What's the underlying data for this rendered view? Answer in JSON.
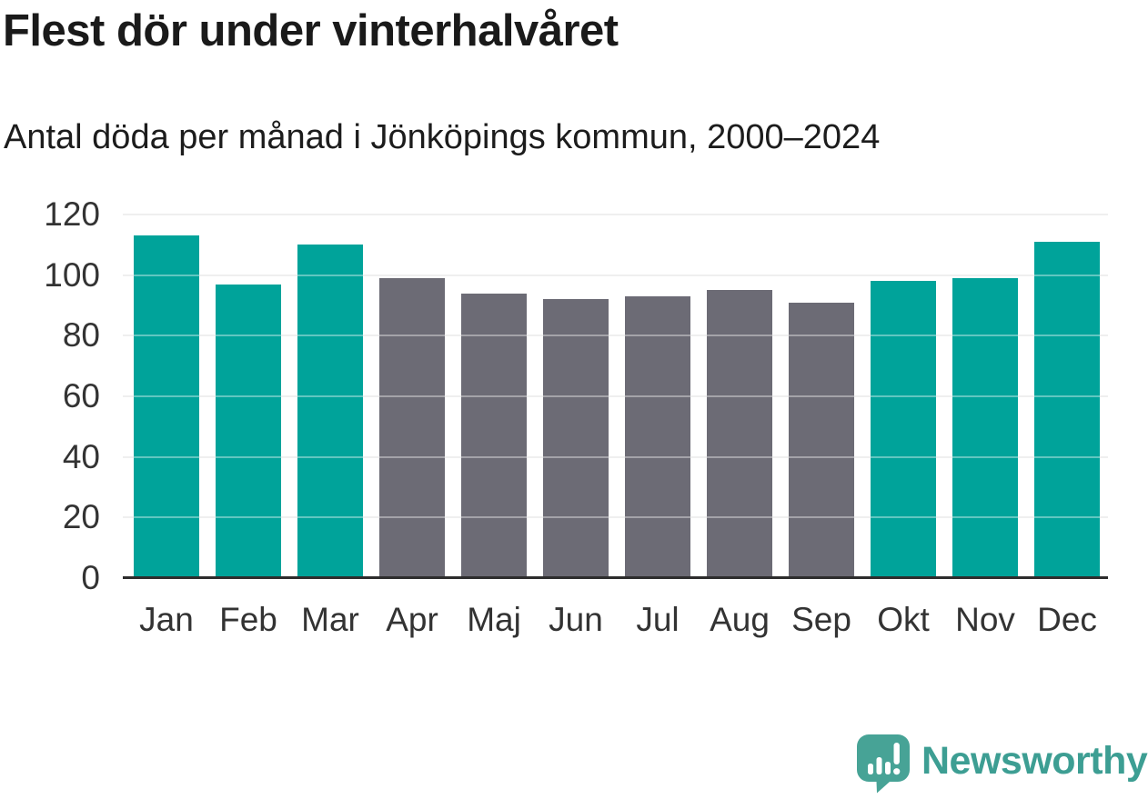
{
  "header": {
    "title": "Flest dör under vinterhalvåret",
    "subtitle": "Antal döda per månad i Jönköpings kommun, 2000–2024"
  },
  "chart_data": {
    "type": "bar",
    "title": "Flest dör under vinterhalvåret",
    "subtitle": "Antal döda per månad i Jönköpings kommun, 2000–2024",
    "categories": [
      "Jan",
      "Feb",
      "Mar",
      "Apr",
      "Maj",
      "Jun",
      "Jul",
      "Aug",
      "Sep",
      "Okt",
      "Nov",
      "Dec"
    ],
    "values": [
      113,
      97,
      110,
      99,
      94,
      92,
      93,
      95,
      91,
      98,
      99,
      111
    ],
    "highlighted_categories": [
      "Jan",
      "Feb",
      "Mar",
      "Okt",
      "Nov",
      "Dec"
    ],
    "xlabel": "",
    "ylabel": "",
    "ylim": [
      0,
      120
    ],
    "yticks": [
      0,
      20,
      40,
      60,
      80,
      100,
      120
    ],
    "grid": true,
    "legend": false,
    "colors": {
      "highlight": "#00a39a",
      "base": "#6c6b75",
      "axis_line": "#2d2d2d",
      "gridline": "#e6e6e6",
      "tick_label": "#333333"
    }
  },
  "footer": {
    "brand": "Newsworthy",
    "brand_color": "#3d9e93",
    "logo_icon": "speech-bubble-bar-chart-icon"
  }
}
